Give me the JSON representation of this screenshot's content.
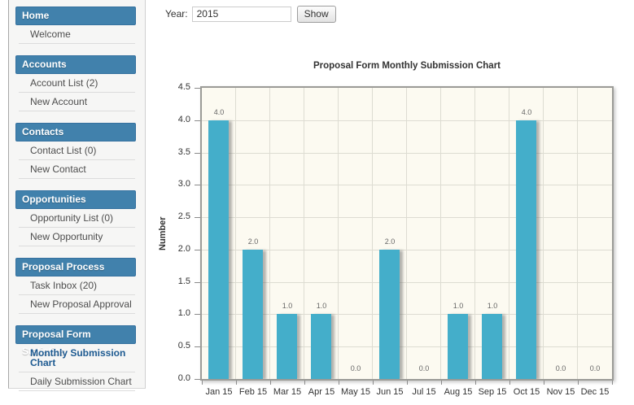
{
  "form": {
    "year_label": "Year:",
    "year_value": "2015",
    "show_label": "Show"
  },
  "sidebar": {
    "sections": [
      {
        "title": "Home",
        "items": [
          {
            "label": "Welcome"
          }
        ]
      },
      {
        "title": "Accounts",
        "items": [
          {
            "label": "Account List (2)"
          },
          {
            "label": "New Account"
          }
        ]
      },
      {
        "title": "Contacts",
        "items": [
          {
            "label": "Contact List (0)"
          },
          {
            "label": "New Contact"
          }
        ]
      },
      {
        "title": "Opportunities",
        "items": [
          {
            "label": "Opportunity List (0)"
          },
          {
            "label": "New Opportunity"
          }
        ]
      },
      {
        "title": "Proposal Process",
        "items": [
          {
            "label": "Task Inbox (20)"
          },
          {
            "label": "New Proposal Approval"
          }
        ]
      },
      {
        "title": "Proposal Form Statistics",
        "items": [
          {
            "label": "Monthly Submission Chart",
            "active": true
          },
          {
            "label": "Daily Submission Chart"
          }
        ]
      }
    ]
  },
  "chart_data": {
    "type": "bar",
    "title": "Proposal Form Monthly Submission Chart",
    "xlabel": "",
    "ylabel": "Number",
    "categories": [
      "Jan 15",
      "Feb 15",
      "Mar 15",
      "Apr 15",
      "May 15",
      "Jun 15",
      "Jul 15",
      "Aug 15",
      "Sep 15",
      "Oct 15",
      "Nov 15",
      "Dec 15"
    ],
    "values": [
      4,
      2,
      1,
      1,
      0,
      2,
      0,
      1,
      1,
      4,
      0,
      0
    ],
    "bar_labels": [
      "4.0",
      "2.0",
      "1.0",
      "1.0",
      "0.0",
      "2.0",
      "0.0",
      "1.0",
      "1.0",
      "4.0",
      "0.0",
      "0.0"
    ],
    "y_ticks": [
      "0.0",
      "0.5",
      "1.0",
      "1.5",
      "2.0",
      "2.5",
      "3.0",
      "3.5",
      "4.0",
      "4.5"
    ],
    "ylim": [
      0,
      4.5
    ],
    "grid": true,
    "legend": false,
    "colors": {
      "bar": "#44aeca",
      "plot_bg": "#fcfaf1",
      "grid_line": "#dddcd2",
      "plot_border": "#9b9b97",
      "header_blue": "#4181ac",
      "active_link": "#1d5a91"
    }
  }
}
